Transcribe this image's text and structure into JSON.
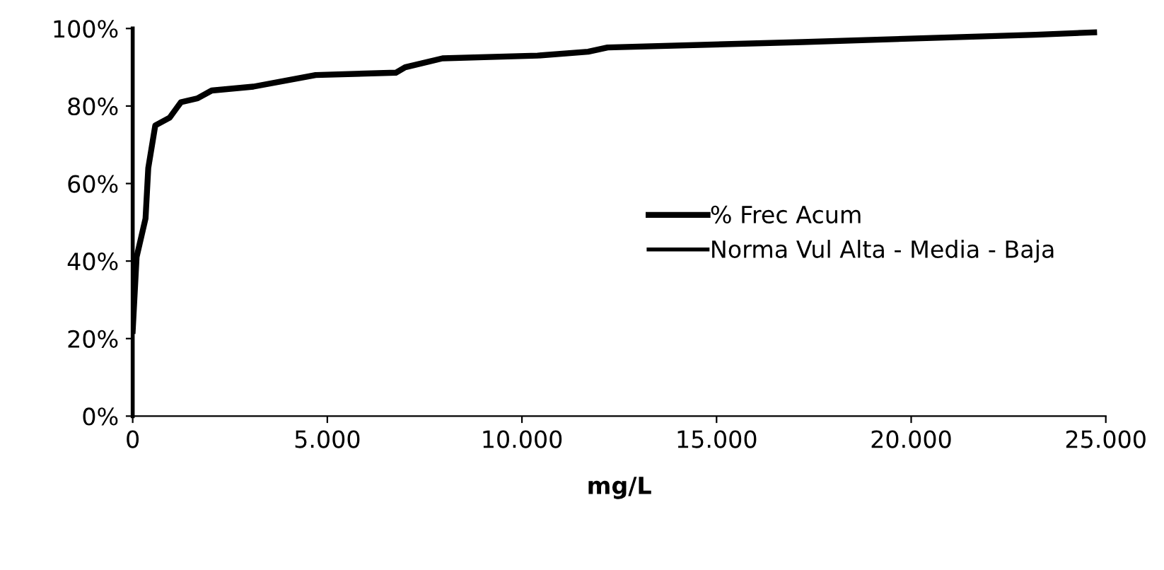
{
  "chart_data": {
    "type": "line",
    "xlabel": "mg/L",
    "legend": "right",
    "series": [
      {
        "name": "% Frec Acum",
        "color": "#000000",
        "x": [
          0,
          100,
          330,
          400,
          580,
          950,
          1240,
          1670,
          2030,
          3100,
          4700,
          6760,
          7000,
          7960,
          10400,
          11700,
          12200,
          17200,
          23200,
          24700
        ],
        "values": [
          22,
          41,
          51,
          64,
          75,
          77,
          81,
          82,
          84,
          85,
          88,
          88.6,
          90,
          92.3,
          93,
          94,
          95.1,
          96.5,
          98.4,
          99
        ]
      },
      {
        "name": "Norma Vul Alta - Media - Baja",
        "color": "#000000"
      }
    ],
    "xlim": [
      0,
      25000
    ],
    "xticks": [
      0,
      {
        "value": 5000,
        "label": "5.000"
      },
      {
        "value": 10000,
        "label": "10.000"
      },
      {
        "value": 15000,
        "label": "15.000"
      },
      {
        "value": 20000,
        "label": "20.000"
      },
      {
        "value": 25000,
        "label": "25.000"
      }
    ],
    "ylim": [
      0,
      100
    ],
    "yticks": [
      {
        "value": 0,
        "label": "0%"
      },
      {
        "value": 20,
        "label": "20%"
      },
      {
        "value": 40,
        "label": "40%"
      },
      {
        "value": 60,
        "label": "60%"
      },
      {
        "value": 80,
        "label": "80%"
      },
      {
        "value": 100,
        "label": "100%"
      }
    ],
    "grid": false
  }
}
